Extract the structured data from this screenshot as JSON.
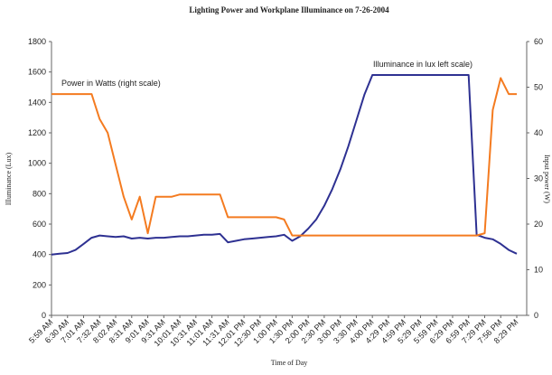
{
  "chart_data": {
    "type": "line",
    "title": "Lighting Power and Workplane Illuminance on 7-26-2004",
    "x_label": "Time of Day",
    "y_label": "Illuminance (Lux)",
    "y2_label": "Input power (W)",
    "categories": [
      "5:59 AM",
      null,
      "6:30 AM",
      null,
      "7:01 AM",
      null,
      "7:32 AM",
      null,
      "8:02 AM",
      null,
      "8:31 AM",
      null,
      "9:01 AM",
      null,
      "9:31 AM",
      null,
      "10:01 AM",
      null,
      "10:31 AM",
      null,
      "11:01 AM",
      null,
      "11:31 AM",
      null,
      "12:01 PM",
      null,
      "12:30 PM",
      null,
      "1:00 PM",
      null,
      "1:30 PM",
      null,
      "2:00 PM",
      null,
      "2:30 PM",
      null,
      "3:00 PM",
      null,
      "3:30 PM",
      null,
      "4:00 PM",
      null,
      "4:29 PM",
      null,
      "4:59 PM",
      null,
      "5:29 PM",
      null,
      "5:59 PM",
      null,
      "6:29 PM",
      null,
      "6:59 PM",
      null,
      "7:29 PM",
      null,
      "7:56 PM",
      null,
      "8:29 PM"
    ],
    "series": [
      {
        "name": "Illuminance in lux left scale)",
        "color": "#2e3192",
        "values": [
          400,
          405,
          410,
          430,
          470,
          510,
          525,
          520,
          515,
          520,
          505,
          510,
          505,
          510,
          510,
          515,
          520,
          520,
          525,
          530,
          530,
          535,
          480,
          490,
          500,
          505,
          510,
          515,
          520,
          530,
          490,
          520,
          570,
          630,
          720,
          830,
          960,
          1110,
          1280,
          1450,
          1580,
          1580,
          1580,
          1580,
          1580,
          1580,
          1580,
          1580,
          1580,
          1580,
          1580,
          1580,
          1580,
          530,
          510,
          500,
          470,
          430,
          405
        ]
      },
      {
        "name": "Power in Watts (right scale)",
        "color": "#f47b20",
        "axis": "y2",
        "values": [
          48.5,
          48.5,
          48.5,
          48.5,
          48.5,
          48.5,
          43,
          40,
          33,
          26,
          21,
          26,
          18,
          26,
          26,
          26,
          26.5,
          26.5,
          26.5,
          26.5,
          26.5,
          26.5,
          21.5,
          21.5,
          21.5,
          21.5,
          21.5,
          21.5,
          21.5,
          21,
          17.5,
          17.5,
          17.5,
          17.5,
          17.5,
          17.5,
          17.5,
          17.5,
          17.5,
          17.5,
          17.5,
          17.5,
          17.5,
          17.5,
          17.5,
          17.5,
          17.5,
          17.5,
          17.5,
          17.5,
          17.5,
          17.5,
          17.5,
          17.5,
          18,
          45,
          52,
          48.5,
          48.5
        ]
      }
    ],
    "ylim": [
      0,
      1800
    ],
    "yticks": [
      0,
      200,
      400,
      600,
      800,
      1000,
      1200,
      1400,
      1600,
      1800
    ],
    "y2lim": [
      0,
      60
    ],
    "y2ticks": [
      0,
      10,
      20,
      30,
      40,
      50,
      60
    ],
    "grid": false
  }
}
